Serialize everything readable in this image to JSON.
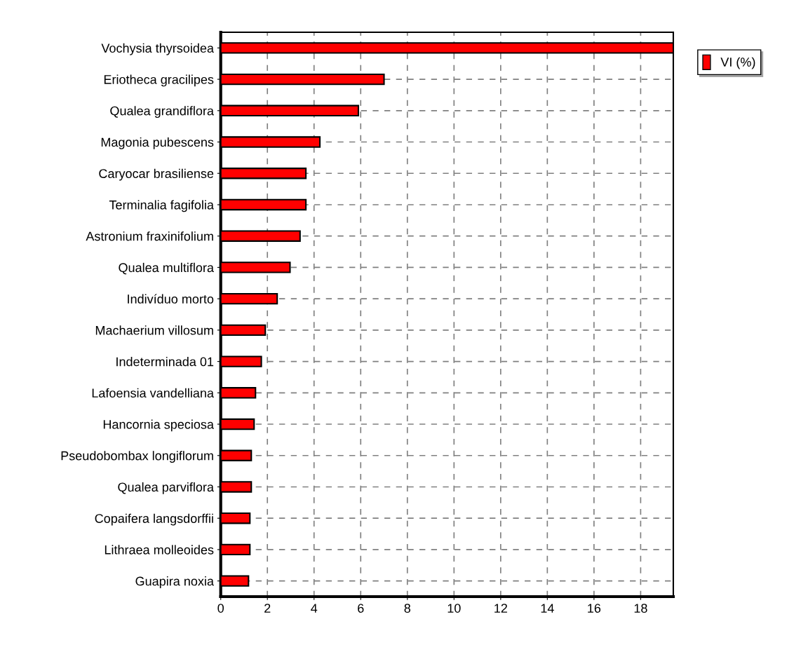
{
  "chart_data": {
    "type": "bar",
    "orientation": "horizontal",
    "categories": [
      "Vochysia thyrsoidea",
      "Eriotheca gracilipes",
      "Qualea grandiflora",
      "Magonia pubescens",
      "Caryocar brasiliense",
      "Terminalia fagifolia",
      "Astronium fraxinifolium",
      "Qualea multiflora",
      "Indivíduo morto",
      "Machaerium villosum",
      "Indeterminada 01",
      "Lafoensia vandelliana",
      "Hancornia speciosa",
      "Pseudobombax longiflorum",
      "Qualea parviflora",
      "Copaifera langsdorffii",
      "Lithraea molleoides",
      "Guapira noxia"
    ],
    "series": [
      {
        "name": "VI (%)",
        "color": "#ff0000",
        "values": [
          19.4,
          7.0,
          5.9,
          4.25,
          3.65,
          3.65,
          3.4,
          2.97,
          2.42,
          1.91,
          1.74,
          1.49,
          1.43,
          1.31,
          1.31,
          1.25,
          1.25,
          1.19
        ]
      }
    ],
    "xlim": [
      0,
      19.4
    ],
    "xticks": [
      0,
      2,
      4,
      6,
      8,
      10,
      12,
      14,
      16,
      18
    ],
    "grid": true,
    "line_style": "dashed",
    "legend": "top right"
  }
}
